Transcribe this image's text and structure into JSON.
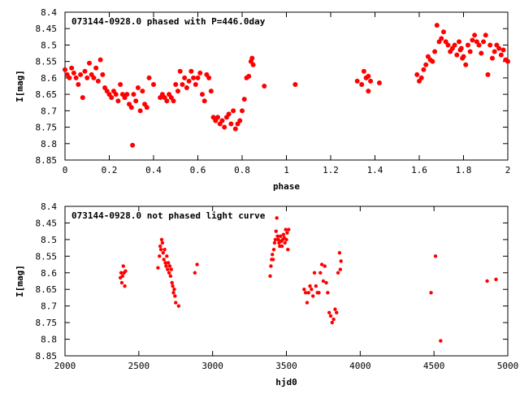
{
  "chart_data": [
    {
      "type": "scatter",
      "title": "073144-0928.0 phased with P=446.0day",
      "xlabel": "phase",
      "ylabel": "I[mag]",
      "xlim": [
        0,
        2
      ],
      "ylim": [
        8.85,
        8.4
      ],
      "y_inverted": true,
      "xticks": [
        "0",
        "0.2",
        "0.4",
        "0.6",
        "0.8",
        "1",
        "1.2",
        "1.4",
        "1.6",
        "1.8",
        "2"
      ],
      "yticks": [
        "8.4",
        "8.45",
        "8.5",
        "8.55",
        "8.6",
        "8.65",
        "8.7",
        "8.75",
        "8.8",
        "8.85"
      ],
      "marker_color": "#ff0000",
      "points": [
        [
          0.0,
          8.575
        ],
        [
          0.01,
          8.59
        ],
        [
          0.02,
          8.6
        ],
        [
          0.03,
          8.57
        ],
        [
          0.04,
          8.585
        ],
        [
          0.05,
          8.6
        ],
        [
          0.06,
          8.62
        ],
        [
          0.07,
          8.59
        ],
        [
          0.08,
          8.66
        ],
        [
          0.09,
          8.58
        ],
        [
          0.1,
          8.6
        ],
        [
          0.11,
          8.555
        ],
        [
          0.12,
          8.59
        ],
        [
          0.13,
          8.6
        ],
        [
          0.14,
          8.57
        ],
        [
          0.15,
          8.61
        ],
        [
          0.16,
          8.545
        ],
        [
          0.17,
          8.59
        ],
        [
          0.18,
          8.63
        ],
        [
          0.19,
          8.64
        ],
        [
          0.2,
          8.65
        ],
        [
          0.21,
          8.66
        ],
        [
          0.22,
          8.64
        ],
        [
          0.23,
          8.65
        ],
        [
          0.24,
          8.67
        ],
        [
          0.25,
          8.62
        ],
        [
          0.26,
          8.65
        ],
        [
          0.27,
          8.66
        ],
        [
          0.28,
          8.65
        ],
        [
          0.29,
          8.68
        ],
        [
          0.3,
          8.69
        ],
        [
          0.31,
          8.65
        ],
        [
          0.32,
          8.67
        ],
        [
          0.33,
          8.63
        ],
        [
          0.34,
          8.7
        ],
        [
          0.35,
          8.64
        ],
        [
          0.36,
          8.68
        ],
        [
          0.37,
          8.69
        ],
        [
          0.38,
          8.6
        ],
        [
          0.4,
          8.62
        ],
        [
          0.305,
          8.805
        ],
        [
          0.43,
          8.66
        ],
        [
          0.44,
          8.65
        ],
        [
          0.45,
          8.66
        ],
        [
          0.46,
          8.67
        ],
        [
          0.47,
          8.65
        ],
        [
          0.48,
          8.66
        ],
        [
          0.49,
          8.67
        ],
        [
          0.5,
          8.62
        ],
        [
          0.51,
          8.64
        ],
        [
          0.52,
          8.58
        ],
        [
          0.53,
          8.62
        ],
        [
          0.54,
          8.6
        ],
        [
          0.55,
          8.63
        ],
        [
          0.56,
          8.61
        ],
        [
          0.57,
          8.58
        ],
        [
          0.58,
          8.6
        ],
        [
          0.59,
          8.62
        ],
        [
          0.6,
          8.6
        ],
        [
          0.61,
          8.585
        ],
        [
          0.62,
          8.65
        ],
        [
          0.63,
          8.67
        ],
        [
          0.64,
          8.59
        ],
        [
          0.65,
          8.6
        ],
        [
          0.66,
          8.64
        ],
        [
          0.67,
          8.72
        ],
        [
          0.68,
          8.73
        ],
        [
          0.69,
          8.72
        ],
        [
          0.7,
          8.74
        ],
        [
          0.71,
          8.73
        ],
        [
          0.72,
          8.75
        ],
        [
          0.73,
          8.72
        ],
        [
          0.74,
          8.71
        ],
        [
          0.75,
          8.74
        ],
        [
          0.76,
          8.7
        ],
        [
          0.77,
          8.755
        ],
        [
          0.78,
          8.74
        ],
        [
          0.79,
          8.73
        ],
        [
          0.8,
          8.7
        ],
        [
          0.81,
          8.665
        ],
        [
          0.82,
          8.6
        ],
        [
          0.83,
          8.595
        ],
        [
          0.84,
          8.55
        ],
        [
          0.845,
          8.54
        ],
        [
          0.85,
          8.56
        ],
        [
          0.9,
          8.625
        ],
        [
          1.04,
          8.62
        ],
        [
          1.32,
          8.61
        ],
        [
          1.34,
          8.62
        ],
        [
          1.35,
          8.58
        ],
        [
          1.36,
          8.6
        ],
        [
          1.37,
          8.595
        ],
        [
          1.38,
          8.61
        ],
        [
          1.42,
          8.615
        ],
        [
          1.37,
          8.64
        ],
        [
          1.59,
          8.59
        ],
        [
          1.6,
          8.61
        ],
        [
          1.61,
          8.6
        ],
        [
          1.62,
          8.575
        ],
        [
          1.63,
          8.56
        ],
        [
          1.64,
          8.535
        ],
        [
          1.65,
          8.545
        ],
        [
          1.66,
          8.55
        ],
        [
          1.67,
          8.52
        ],
        [
          1.68,
          8.44
        ],
        [
          1.69,
          8.49
        ],
        [
          1.7,
          8.48
        ],
        [
          1.71,
          8.46
        ],
        [
          1.72,
          8.49
        ],
        [
          1.73,
          8.5
        ],
        [
          1.74,
          8.52
        ],
        [
          1.75,
          8.51
        ],
        [
          1.76,
          8.5
        ],
        [
          1.77,
          8.53
        ],
        [
          1.78,
          8.49
        ],
        [
          1.79,
          8.51
        ],
        [
          1.8,
          8.535
        ],
        [
          1.81,
          8.56
        ],
        [
          1.82,
          8.5
        ],
        [
          1.83,
          8.52
        ],
        [
          1.84,
          8.485
        ],
        [
          1.85,
          8.47
        ],
        [
          1.86,
          8.49
        ],
        [
          1.87,
          8.5
        ],
        [
          1.88,
          8.525
        ],
        [
          1.89,
          8.49
        ],
        [
          1.9,
          8.47
        ],
        [
          1.91,
          8.59
        ],
        [
          1.92,
          8.5
        ],
        [
          1.93,
          8.54
        ],
        [
          1.94,
          8.52
        ],
        [
          1.95,
          8.5
        ],
        [
          1.96,
          8.51
        ],
        [
          1.97,
          8.53
        ],
        [
          1.98,
          8.515
        ],
        [
          1.99,
          8.545
        ],
        [
          2.0,
          8.55
        ],
        [
          1.785,
          8.515
        ],
        [
          1.795,
          8.54
        ]
      ]
    },
    {
      "type": "scatter",
      "title": "073144-0928.0 not phased light curve",
      "xlabel": "hjd0",
      "ylabel": "I[mag]",
      "xlim": [
        2000,
        5000
      ],
      "ylim": [
        8.85,
        8.4
      ],
      "y_inverted": true,
      "xticks": [
        "2000",
        "2500",
        "3000",
        "3500",
        "4000",
        "4500",
        "5000"
      ],
      "yticks": [
        "8.4",
        "8.45",
        "8.5",
        "8.55",
        "8.6",
        "8.65",
        "8.7",
        "8.75",
        "8.8",
        "8.85"
      ],
      "marker_color": "#ff0000",
      "points": [
        [
          2375,
          8.615
        ],
        [
          2380,
          8.6
        ],
        [
          2385,
          8.63
        ],
        [
          2390,
          8.61
        ],
        [
          2395,
          8.58
        ],
        [
          2400,
          8.6
        ],
        [
          2405,
          8.64
        ],
        [
          2410,
          8.595
        ],
        [
          2630,
          8.585
        ],
        [
          2640,
          8.55
        ],
        [
          2645,
          8.52
        ],
        [
          2650,
          8.53
        ],
        [
          2655,
          8.5
        ],
        [
          2660,
          8.51
        ],
        [
          2665,
          8.54
        ],
        [
          2670,
          8.56
        ],
        [
          2675,
          8.53
        ],
        [
          2680,
          8.57
        ],
        [
          2685,
          8.58
        ],
        [
          2690,
          8.55
        ],
        [
          2695,
          8.59
        ],
        [
          2700,
          8.57
        ],
        [
          2705,
          8.6
        ],
        [
          2710,
          8.58
        ],
        [
          2715,
          8.61
        ],
        [
          2720,
          8.59
        ],
        [
          2725,
          8.63
        ],
        [
          2730,
          8.64
        ],
        [
          2735,
          8.66
        ],
        [
          2740,
          8.65
        ],
        [
          2745,
          8.67
        ],
        [
          2750,
          8.69
        ],
        [
          2770,
          8.7
        ],
        [
          2880,
          8.6
        ],
        [
          2895,
          8.575
        ],
        [
          3390,
          8.61
        ],
        [
          3395,
          8.58
        ],
        [
          3400,
          8.56
        ],
        [
          3405,
          8.545
        ],
        [
          3410,
          8.56
        ],
        [
          3415,
          8.53
        ],
        [
          3420,
          8.51
        ],
        [
          3425,
          8.5
        ],
        [
          3430,
          8.475
        ],
        [
          3435,
          8.435
        ],
        [
          3440,
          8.49
        ],
        [
          3445,
          8.5
        ],
        [
          3450,
          8.51
        ],
        [
          3455,
          8.52
        ],
        [
          3460,
          8.49
        ],
        [
          3465,
          8.505
        ],
        [
          3470,
          8.52
        ],
        [
          3475,
          8.5
        ],
        [
          3480,
          8.485
        ],
        [
          3485,
          8.495
        ],
        [
          3490,
          8.51
        ],
        [
          3495,
          8.47
        ],
        [
          3500,
          8.5
        ],
        [
          3505,
          8.48
        ],
        [
          3510,
          8.53
        ],
        [
          3515,
          8.47
        ],
        [
          3620,
          8.65
        ],
        [
          3630,
          8.66
        ],
        [
          3640,
          8.69
        ],
        [
          3650,
          8.66
        ],
        [
          3660,
          8.64
        ],
        [
          3670,
          8.65
        ],
        [
          3680,
          8.67
        ],
        [
          3690,
          8.6
        ],
        [
          3700,
          8.64
        ],
        [
          3710,
          8.66
        ],
        [
          3720,
          8.66
        ],
        [
          3730,
          8.6
        ],
        [
          3740,
          8.575
        ],
        [
          3750,
          8.625
        ],
        [
          3760,
          8.58
        ],
        [
          3770,
          8.63
        ],
        [
          3780,
          8.66
        ],
        [
          3790,
          8.72
        ],
        [
          3800,
          8.73
        ],
        [
          3810,
          8.75
        ],
        [
          3820,
          8.74
        ],
        [
          3830,
          8.71
        ],
        [
          3840,
          8.72
        ],
        [
          3850,
          8.6
        ],
        [
          3860,
          8.54
        ],
        [
          3865,
          8.59
        ],
        [
          3870,
          8.565
        ],
        [
          4480,
          8.66
        ],
        [
          4510,
          8.55
        ],
        [
          4545,
          8.805
        ],
        [
          4860,
          8.625
        ],
        [
          4920,
          8.62
        ]
      ]
    }
  ]
}
